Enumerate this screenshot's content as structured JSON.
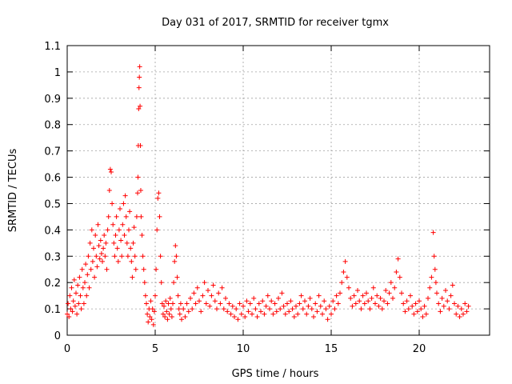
{
  "chart_data": {
    "type": "scatter",
    "title": "Day 031 of 2017, SRMTID for receiver tgmx",
    "xlabel": "GPS time / hours",
    "ylabel": "SRMTID / TECUs",
    "xlim": [
      0,
      24
    ],
    "ylim": [
      0,
      1.1
    ],
    "xticks": [
      0,
      5,
      10,
      15,
      20
    ],
    "yticks": [
      0,
      0.1,
      0.2,
      0.3,
      0.4,
      0.5,
      0.6,
      0.7,
      0.8,
      0.9,
      1,
      1.1
    ],
    "xtick_labels": [
      "0",
      "5",
      "10",
      "15",
      "20"
    ],
    "ytick_labels": [
      "0",
      "0.1",
      "0.2",
      "0.3",
      "0.4",
      "0.5",
      "0.6",
      "0.7",
      "0.8",
      "0.9",
      "1",
      "1.1"
    ],
    "grid": true,
    "marker": "+",
    "color": "#ff0000",
    "series": [
      {
        "name": "SRMTID",
        "points": [
          [
            0.0,
            0.08
          ],
          [
            0.05,
            0.12
          ],
          [
            0.1,
            0.07
          ],
          [
            0.15,
            0.15
          ],
          [
            0.2,
            0.1
          ],
          [
            0.25,
            0.18
          ],
          [
            0.3,
            0.09
          ],
          [
            0.35,
            0.13
          ],
          [
            0.4,
            0.21
          ],
          [
            0.45,
            0.11
          ],
          [
            0.5,
            0.16
          ],
          [
            0.55,
            0.08
          ],
          [
            0.6,
            0.19
          ],
          [
            0.65,
            0.12
          ],
          [
            0.7,
            0.22
          ],
          [
            0.75,
            0.15
          ],
          [
            0.8,
            0.1
          ],
          [
            0.85,
            0.25
          ],
          [
            0.9,
            0.18
          ],
          [
            0.95,
            0.12
          ],
          [
            1.0,
            0.2
          ],
          [
            1.05,
            0.27
          ],
          [
            1.1,
            0.15
          ],
          [
            1.15,
            0.23
          ],
          [
            1.2,
            0.3
          ],
          [
            1.25,
            0.18
          ],
          [
            1.3,
            0.35
          ],
          [
            1.35,
            0.25
          ],
          [
            1.4,
            0.4
          ],
          [
            1.45,
            0.28
          ],
          [
            1.5,
            0.33
          ],
          [
            1.55,
            0.22
          ],
          [
            1.6,
            0.38
          ],
          [
            1.65,
            0.3
          ],
          [
            1.7,
            0.26
          ],
          [
            1.75,
            0.42
          ],
          [
            1.8,
            0.34
          ],
          [
            1.85,
            0.29
          ],
          [
            1.9,
            0.36
          ],
          [
            1.95,
            0.31
          ],
          [
            2.0,
            0.28
          ],
          [
            2.05,
            0.33
          ],
          [
            2.1,
            0.38
          ],
          [
            2.15,
            0.3
          ],
          [
            2.2,
            0.35
          ],
          [
            2.25,
            0.25
          ],
          [
            2.3,
            0.4
          ],
          [
            2.35,
            0.45
          ],
          [
            2.4,
            0.55
          ],
          [
            2.45,
            0.63
          ],
          [
            2.5,
            0.62
          ],
          [
            2.55,
            0.5
          ],
          [
            2.6,
            0.42
          ],
          [
            2.65,
            0.35
          ],
          [
            2.7,
            0.3
          ],
          [
            2.75,
            0.38
          ],
          [
            2.8,
            0.45
          ],
          [
            2.85,
            0.33
          ],
          [
            2.9,
            0.28
          ],
          [
            2.95,
            0.4
          ],
          [
            3.0,
            0.48
          ],
          [
            3.05,
            0.36
          ],
          [
            3.1,
            0.3
          ],
          [
            3.15,
            0.42
          ],
          [
            3.2,
            0.5
          ],
          [
            3.25,
            0.38
          ],
          [
            3.3,
            0.53
          ],
          [
            3.35,
            0.45
          ],
          [
            3.4,
            0.35
          ],
          [
            3.45,
            0.3
          ],
          [
            3.5,
            0.4
          ],
          [
            3.55,
            0.47
          ],
          [
            3.6,
            0.33
          ],
          [
            3.65,
            0.28
          ],
          [
            3.7,
            0.22
          ],
          [
            3.75,
            0.35
          ],
          [
            3.8,
            0.41
          ],
          [
            3.85,
            0.3
          ],
          [
            3.9,
            0.25
          ],
          [
            3.95,
            0.45
          ],
          [
            4.0,
            0.54
          ],
          [
            4.02,
            0.6
          ],
          [
            4.04,
            0.72
          ],
          [
            4.06,
            0.86
          ],
          [
            4.08,
            0.94
          ],
          [
            4.1,
            0.98
          ],
          [
            4.12,
            1.02
          ],
          [
            4.14,
            0.87
          ],
          [
            4.16,
            0.72
          ],
          [
            4.18,
            0.55
          ],
          [
            4.2,
            0.45
          ],
          [
            4.25,
            0.38
          ],
          [
            4.3,
            0.3
          ],
          [
            4.35,
            0.25
          ],
          [
            4.4,
            0.2
          ],
          [
            4.45,
            0.15
          ],
          [
            4.5,
            0.12
          ],
          [
            4.55,
            0.08
          ],
          [
            4.6,
            0.05
          ],
          [
            4.65,
            0.1
          ],
          [
            4.7,
            0.07
          ],
          [
            4.75,
            0.13
          ],
          [
            4.8,
            0.06
          ],
          [
            4.85,
            0.1
          ],
          [
            4.9,
            0.04
          ],
          [
            4.95,
            0.09
          ],
          [
            5.0,
            0.15
          ],
          [
            5.05,
            0.25
          ],
          [
            5.1,
            0.4
          ],
          [
            5.15,
            0.52
          ],
          [
            5.2,
            0.54
          ],
          [
            5.25,
            0.45
          ],
          [
            5.3,
            0.3
          ],
          [
            5.35,
            0.2
          ],
          [
            5.4,
            0.12
          ],
          [
            5.45,
            0.08
          ],
          [
            5.5,
            0.11
          ],
          [
            5.55,
            0.07
          ],
          [
            5.6,
            0.13
          ],
          [
            5.65,
            0.09
          ],
          [
            5.7,
            0.06
          ],
          [
            5.75,
            0.12
          ],
          [
            5.8,
            0.08
          ],
          [
            5.85,
            0.14
          ],
          [
            5.9,
            0.1
          ],
          [
            5.95,
            0.07
          ],
          [
            6.0,
            0.12
          ],
          [
            6.05,
            0.2
          ],
          [
            6.1,
            0.28
          ],
          [
            6.15,
            0.34
          ],
          [
            6.2,
            0.3
          ],
          [
            6.25,
            0.22
          ],
          [
            6.3,
            0.15
          ],
          [
            6.35,
            0.1
          ],
          [
            6.4,
            0.08
          ],
          [
            6.45,
            0.12
          ],
          [
            6.5,
            0.06
          ],
          [
            6.6,
            0.1
          ],
          [
            6.7,
            0.07
          ],
          [
            6.8,
            0.12
          ],
          [
            6.9,
            0.09
          ],
          [
            7.0,
            0.14
          ],
          [
            7.1,
            0.1
          ],
          [
            7.2,
            0.16
          ],
          [
            7.3,
            0.12
          ],
          [
            7.4,
            0.18
          ],
          [
            7.5,
            0.13
          ],
          [
            7.6,
            0.09
          ],
          [
            7.7,
            0.15
          ],
          [
            7.8,
            0.2
          ],
          [
            7.9,
            0.12
          ],
          [
            8.0,
            0.17
          ],
          [
            8.1,
            0.11
          ],
          [
            8.2,
            0.15
          ],
          [
            8.3,
            0.19
          ],
          [
            8.4,
            0.13
          ],
          [
            8.5,
            0.1
          ],
          [
            8.6,
            0.16
          ],
          [
            8.7,
            0.12
          ],
          [
            8.8,
            0.18
          ],
          [
            8.9,
            0.1
          ],
          [
            9.0,
            0.14
          ],
          [
            9.1,
            0.09
          ],
          [
            9.2,
            0.12
          ],
          [
            9.3,
            0.08
          ],
          [
            9.4,
            0.11
          ],
          [
            9.5,
            0.07
          ],
          [
            9.6,
            0.1
          ],
          [
            9.7,
            0.06
          ],
          [
            9.8,
            0.12
          ],
          [
            9.9,
            0.08
          ],
          [
            10.0,
            0.11
          ],
          [
            10.1,
            0.07
          ],
          [
            10.2,
            0.13
          ],
          [
            10.3,
            0.09
          ],
          [
            10.4,
            0.12
          ],
          [
            10.5,
            0.08
          ],
          [
            10.6,
            0.14
          ],
          [
            10.7,
            0.1
          ],
          [
            10.8,
            0.07
          ],
          [
            10.9,
            0.12
          ],
          [
            11.0,
            0.09
          ],
          [
            11.1,
            0.13
          ],
          [
            11.2,
            0.08
          ],
          [
            11.3,
            0.11
          ],
          [
            11.4,
            0.15
          ],
          [
            11.5,
            0.1
          ],
          [
            11.6,
            0.13
          ],
          [
            11.7,
            0.08
          ],
          [
            11.8,
            0.12
          ],
          [
            11.9,
            0.09
          ],
          [
            12.0,
            0.14
          ],
          [
            12.1,
            0.1
          ],
          [
            12.2,
            0.16
          ],
          [
            12.3,
            0.11
          ],
          [
            12.4,
            0.08
          ],
          [
            12.5,
            0.12
          ],
          [
            12.6,
            0.09
          ],
          [
            12.7,
            0.13
          ],
          [
            12.8,
            0.1
          ],
          [
            12.9,
            0.07
          ],
          [
            13.0,
            0.11
          ],
          [
            13.1,
            0.08
          ],
          [
            13.2,
            0.12
          ],
          [
            13.3,
            0.15
          ],
          [
            13.4,
            0.1
          ],
          [
            13.5,
            0.13
          ],
          [
            13.6,
            0.08
          ],
          [
            13.7,
            0.11
          ],
          [
            13.8,
            0.14
          ],
          [
            13.9,
            0.1
          ],
          [
            14.0,
            0.07
          ],
          [
            14.1,
            0.12
          ],
          [
            14.2,
            0.09
          ],
          [
            14.3,
            0.15
          ],
          [
            14.4,
            0.11
          ],
          [
            14.5,
            0.08
          ],
          [
            14.6,
            0.13
          ],
          [
            14.7,
            0.1
          ],
          [
            14.8,
            0.06
          ],
          [
            14.9,
            0.11
          ],
          [
            15.0,
            0.08
          ],
          [
            15.1,
            0.13
          ],
          [
            15.2,
            0.1
          ],
          [
            15.3,
            0.15
          ],
          [
            15.4,
            0.12
          ],
          [
            15.5,
            0.16
          ],
          [
            15.6,
            0.2
          ],
          [
            15.7,
            0.24
          ],
          [
            15.8,
            0.28
          ],
          [
            15.9,
            0.22
          ],
          [
            16.0,
            0.18
          ],
          [
            16.1,
            0.14
          ],
          [
            16.2,
            0.11
          ],
          [
            16.3,
            0.15
          ],
          [
            16.4,
            0.12
          ],
          [
            16.5,
            0.17
          ],
          [
            16.6,
            0.13
          ],
          [
            16.7,
            0.1
          ],
          [
            16.8,
            0.15
          ],
          [
            16.9,
            0.12
          ],
          [
            17.0,
            0.16
          ],
          [
            17.1,
            0.13
          ],
          [
            17.2,
            0.1
          ],
          [
            17.3,
            0.14
          ],
          [
            17.4,
            0.18
          ],
          [
            17.5,
            0.12
          ],
          [
            17.6,
            0.15
          ],
          [
            17.7,
            0.11
          ],
          [
            17.8,
            0.14
          ],
          [
            17.9,
            0.1
          ],
          [
            18.0,
            0.13
          ],
          [
            18.1,
            0.17
          ],
          [
            18.2,
            0.12
          ],
          [
            18.3,
            0.16
          ],
          [
            18.4,
            0.2
          ],
          [
            18.5,
            0.14
          ],
          [
            18.6,
            0.18
          ],
          [
            18.7,
            0.24
          ],
          [
            18.8,
            0.29
          ],
          [
            18.9,
            0.22
          ],
          [
            19.0,
            0.16
          ],
          [
            19.1,
            0.12
          ],
          [
            19.2,
            0.09
          ],
          [
            19.3,
            0.13
          ],
          [
            19.4,
            0.1
          ],
          [
            19.5,
            0.15
          ],
          [
            19.6,
            0.11
          ],
          [
            19.7,
            0.08
          ],
          [
            19.8,
            0.12
          ],
          [
            19.9,
            0.09
          ],
          [
            20.0,
            0.13
          ],
          [
            20.1,
            0.1
          ],
          [
            20.2,
            0.07
          ],
          [
            20.3,
            0.11
          ],
          [
            20.4,
            0.08
          ],
          [
            20.5,
            0.14
          ],
          [
            20.6,
            0.18
          ],
          [
            20.7,
            0.22
          ],
          [
            20.8,
            0.39
          ],
          [
            20.85,
            0.3
          ],
          [
            20.9,
            0.25
          ],
          [
            20.95,
            0.2
          ],
          [
            21.0,
            0.16
          ],
          [
            21.1,
            0.12
          ],
          [
            21.2,
            0.09
          ],
          [
            21.3,
            0.14
          ],
          [
            21.4,
            0.11
          ],
          [
            21.5,
            0.17
          ],
          [
            21.6,
            0.13
          ],
          [
            21.7,
            0.1
          ],
          [
            21.8,
            0.15
          ],
          [
            21.9,
            0.19
          ],
          [
            22.0,
            0.12
          ],
          [
            22.1,
            0.08
          ],
          [
            22.2,
            0.11
          ],
          [
            22.3,
            0.07
          ],
          [
            22.4,
            0.1
          ],
          [
            22.5,
            0.08
          ],
          [
            22.6,
            0.12
          ],
          [
            22.7,
            0.09
          ],
          [
            22.8,
            0.11
          ]
        ]
      }
    ]
  }
}
